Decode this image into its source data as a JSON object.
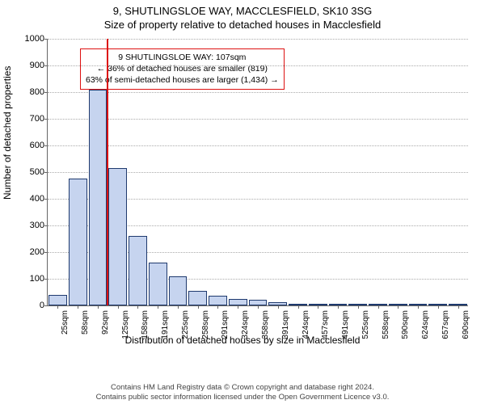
{
  "title_line1": "9, SHUTLINGSLOE WAY, MACCLESFIELD, SK10 3SG",
  "title_line2": "Size of property relative to detached houses in Macclesfield",
  "chart": {
    "type": "histogram",
    "ylabel": "Number of detached properties",
    "xlabel": "Distribution of detached houses by size in Macclesfield",
    "ylim": [
      0,
      1000
    ],
    "ytick_step": 100,
    "x_categories": [
      "25sqm",
      "58sqm",
      "92sqm",
      "125sqm",
      "158sqm",
      "191sqm",
      "225sqm",
      "258sqm",
      "291sqm",
      "324sqm",
      "358sqm",
      "391sqm",
      "424sqm",
      "457sqm",
      "491sqm",
      "525sqm",
      "558sqm",
      "590sqm",
      "624sqm",
      "657sqm",
      "690sqm"
    ],
    "values": [
      40,
      475,
      810,
      515,
      260,
      160,
      110,
      55,
      35,
      25,
      20,
      12,
      7,
      5,
      4,
      3,
      2,
      2,
      2,
      1,
      1
    ],
    "bar_fill": "#c6d4ef",
    "bar_border": "#1f3a6e",
    "grid_color": "#aaaaaa",
    "axis_color": "#666666",
    "background": "#ffffff",
    "marker": {
      "position_sqm": 107,
      "color": "#dd1111"
    },
    "annotation": {
      "line1": "9 SHUTLINGSLOE WAY: 107sqm",
      "line2": "← 36% of detached houses are smaller (819)",
      "line3": "63% of semi-detached houses are larger (1,434) →",
      "border_color": "#dd1111"
    },
    "title_fontsize": 13,
    "label_fontsize": 12,
    "tick_fontsize": 11,
    "xtick_fontsize": 10,
    "annot_fontsize": 10.5
  },
  "footer_line1": "Contains HM Land Registry data © Crown copyright and database right 2024.",
  "footer_line2": "Contains public sector information licensed under the Open Government Licence v3.0."
}
